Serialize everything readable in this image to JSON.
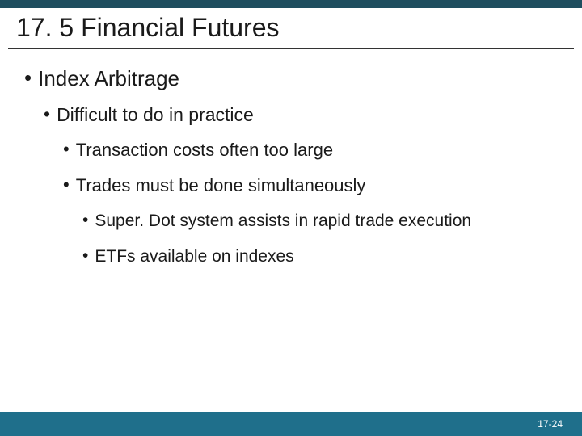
{
  "colors": {
    "topbar": "#1f4e5f",
    "rule": "#333333",
    "footer": "#1f6f8b",
    "title_text": "#1a1a1a",
    "body_text": "#1a1a1a",
    "pagenum_text": "#ffffff",
    "background": "#ffffff"
  },
  "title": "17. 5 Financial Futures",
  "pagenum": "17-24",
  "bullets": {
    "l1": "Index Arbitrage",
    "l2": "Difficult to do in practice",
    "l3a": "Transaction costs often too large",
    "l3b": "Trades must be done simultaneously",
    "l4a": "Super. Dot system assists in rapid trade execution",
    "l4b": "ETFs available on indexes"
  }
}
